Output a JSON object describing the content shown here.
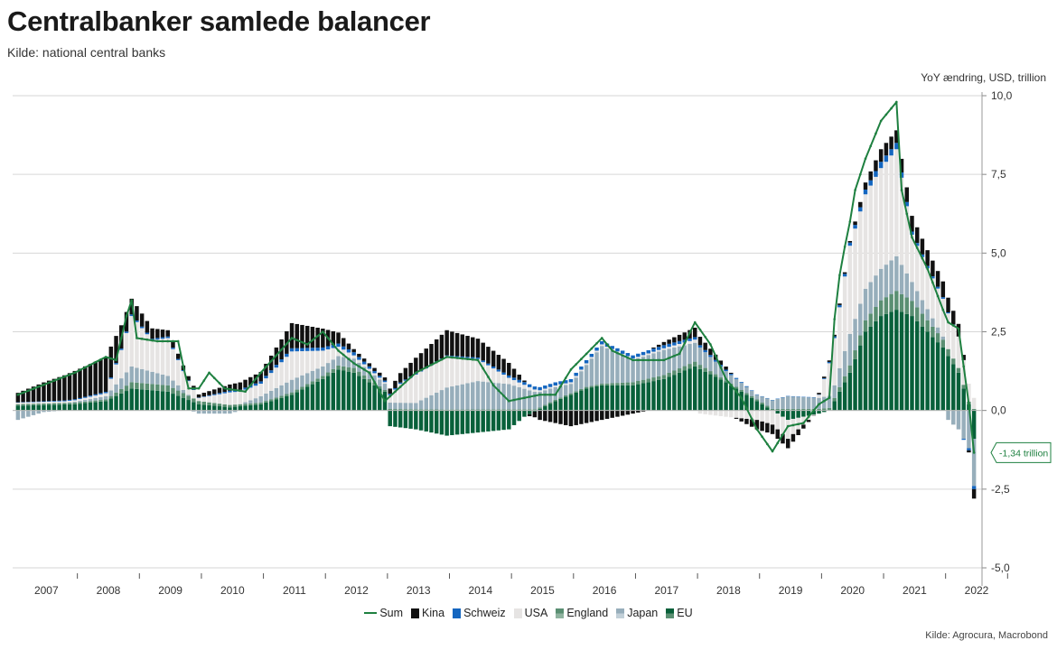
{
  "title": "Centralbanker samlede balancer",
  "subtitle": "Kilde: national central banks",
  "source": "Kilde: Agrocura, Macrobond",
  "chart_data": {
    "type": "bar",
    "stacked": true,
    "title": "Centralbanker samlede balancer",
    "ylabel": "YoY ændring, USD, trillion",
    "ylim": [
      -5,
      10
    ],
    "y_ticks": [
      "10,0",
      "7,5",
      "5,0",
      "2,5",
      "0,0",
      "-2,5",
      "-5,0"
    ],
    "y_tick_values": [
      10,
      7.5,
      5,
      2.5,
      0,
      -2.5,
      -5
    ],
    "y_axis_side": "right",
    "grid": true,
    "x_tick_labels": [
      "2007",
      "2008",
      "2009",
      "2010",
      "2011",
      "2012",
      "2013",
      "2014",
      "2015",
      "2016",
      "2017",
      "2018",
      "2019",
      "2020",
      "2021",
      "2022"
    ],
    "frequency": "monthly",
    "start": "2007-01",
    "end": "2022-06",
    "legend_position": "bottom",
    "end_annotation": "-1,34 trillion",
    "series": [
      {
        "name": "Sum",
        "kind": "line",
        "color": "#1e8040"
      },
      {
        "name": "Kina",
        "kind": "bar",
        "color": "#111111"
      },
      {
        "name": "Schweiz",
        "kind": "bar",
        "color": "#1466c0"
      },
      {
        "name": "USA",
        "kind": "bar",
        "color": "#e6e4e3"
      },
      {
        "name": "England",
        "kind": "bar",
        "color": "#5a8f72"
      },
      {
        "name": "Japan",
        "kind": "bar",
        "color": "#97aebb"
      },
      {
        "name": "EU",
        "kind": "bar",
        "color": "#08603a"
      }
    ],
    "anchors": {
      "sum": [
        [
          "2007-01",
          0.5
        ],
        [
          "2007-12",
          1.2
        ],
        [
          "2008-06",
          1.7
        ],
        [
          "2008-08",
          1.6
        ],
        [
          "2008-10",
          3.0
        ],
        [
          "2008-11",
          3.5
        ],
        [
          "2008-12",
          2.3
        ],
        [
          "2009-04",
          2.2
        ],
        [
          "2009-08",
          2.2
        ],
        [
          "2009-09",
          1.4
        ],
        [
          "2009-10",
          0.7
        ],
        [
          "2009-12",
          0.7
        ],
        [
          "2010-02",
          1.2
        ],
        [
          "2010-05",
          0.7
        ],
        [
          "2010-09",
          0.6
        ],
        [
          "2010-12",
          1.2
        ],
        [
          "2011-06",
          2.3
        ],
        [
          "2011-09",
          2.1
        ],
        [
          "2011-12",
          2.5
        ],
        [
          "2012-03",
          1.9
        ],
        [
          "2012-06",
          1.5
        ],
        [
          "2012-09",
          1.2
        ],
        [
          "2012-12",
          0.3
        ],
        [
          "2013-06",
          1.2
        ],
        [
          "2013-12",
          1.7
        ],
        [
          "2014-06",
          1.6
        ],
        [
          "2014-09",
          0.8
        ],
        [
          "2014-12",
          0.3
        ],
        [
          "2015-06",
          0.5
        ],
        [
          "2015-09",
          0.5
        ],
        [
          "2015-12",
          1.3
        ],
        [
          "2016-06",
          2.3
        ],
        [
          "2016-08",
          1.9
        ],
        [
          "2016-12",
          1.6
        ],
        [
          "2017-06",
          1.6
        ],
        [
          "2017-09",
          1.8
        ],
        [
          "2017-12",
          2.8
        ],
        [
          "2018-03",
          2.1
        ],
        [
          "2018-06",
          1.0
        ],
        [
          "2018-09",
          0.4
        ],
        [
          "2018-12",
          -0.6
        ],
        [
          "2019-03",
          -1.3
        ],
        [
          "2019-06",
          -0.5
        ],
        [
          "2019-09",
          -0.4
        ],
        [
          "2019-12",
          0.2
        ],
        [
          "2020-01",
          0.3
        ],
        [
          "2020-02",
          0.4
        ],
        [
          "2020-03",
          2.9
        ],
        [
          "2020-04",
          4.3
        ],
        [
          "2020-05",
          5.2
        ],
        [
          "2020-06",
          6.0
        ],
        [
          "2020-07",
          7.0
        ],
        [
          "2020-09",
          8.0
        ],
        [
          "2020-12",
          9.2
        ],
        [
          "2021-03",
          9.8
        ],
        [
          "2021-04",
          7.0
        ],
        [
          "2021-06",
          5.5
        ],
        [
          "2021-09",
          4.5
        ],
        [
          "2021-12",
          3.2
        ],
        [
          "2022-01",
          2.8
        ],
        [
          "2022-03",
          2.6
        ],
        [
          "2022-05",
          0.2
        ],
        [
          "2022-06",
          -1.34
        ]
      ],
      "eu": [
        [
          "2007-01",
          0.15
        ],
        [
          "2007-12",
          0.2
        ],
        [
          "2008-06",
          0.3
        ],
        [
          "2008-11",
          0.7
        ],
        [
          "2009-06",
          0.6
        ],
        [
          "2009-12",
          0.2
        ],
        [
          "2010-06",
          0.1
        ],
        [
          "2010-12",
          0.2
        ],
        [
          "2011-06",
          0.5
        ],
        [
          "2011-12",
          1.0
        ],
        [
          "2012-03",
          1.3
        ],
        [
          "2012-06",
          1.2
        ],
        [
          "2012-12",
          0.6
        ],
        [
          "2013-01",
          -0.5
        ],
        [
          "2013-06",
          -0.6
        ],
        [
          "2013-12",
          -0.8
        ],
        [
          "2014-06",
          -0.7
        ],
        [
          "2014-12",
          -0.6
        ],
        [
          "2015-03",
          -0.2
        ],
        [
          "2015-06",
          0.05
        ],
        [
          "2015-09",
          0.3
        ],
        [
          "2016-03",
          0.7
        ],
        [
          "2016-06",
          0.8
        ],
        [
          "2016-12",
          0.8
        ],
        [
          "2017-06",
          1.0
        ],
        [
          "2017-12",
          1.4
        ],
        [
          "2018-06",
          0.9
        ],
        [
          "2018-12",
          0.3
        ],
        [
          "2019-06",
          -0.3
        ],
        [
          "2019-12",
          -0.1
        ],
        [
          "2020-02",
          0.0
        ],
        [
          "2020-03",
          0.3
        ],
        [
          "2020-06",
          1.2
        ],
        [
          "2020-09",
          2.5
        ],
        [
          "2020-12",
          3.0
        ],
        [
          "2021-03",
          3.2
        ],
        [
          "2021-06",
          3.0
        ],
        [
          "2021-12",
          2.0
        ],
        [
          "2022-03",
          1.2
        ],
        [
          "2022-05",
          0.2
        ],
        [
          "2022-06",
          -0.9
        ]
      ],
      "eng": [
        [
          "2007-01",
          0.05
        ],
        [
          "2008-06",
          0.05
        ],
        [
          "2008-11",
          0.2
        ],
        [
          "2009-06",
          0.2
        ],
        [
          "2009-12",
          0.1
        ],
        [
          "2010-12",
          0.05
        ],
        [
          "2011-12",
          0.1
        ],
        [
          "2012-06",
          0.15
        ],
        [
          "2012-12",
          0.05
        ],
        [
          "2013-12",
          0.03
        ],
        [
          "2016-06",
          0.05
        ],
        [
          "2016-12",
          0.1
        ],
        [
          "2017-12",
          0.15
        ],
        [
          "2018-06",
          0.05
        ],
        [
          "2019-12",
          0.05
        ],
        [
          "2020-03",
          0.1
        ],
        [
          "2020-12",
          0.5
        ],
        [
          "2021-03",
          0.6
        ],
        [
          "2021-12",
          0.25
        ],
        [
          "2022-06",
          0.05
        ]
      ],
      "jp": [
        [
          "2007-01",
          -0.3
        ],
        [
          "2007-06",
          -0.05
        ],
        [
          "2008-06",
          0.1
        ],
        [
          "2008-11",
          0.5
        ],
        [
          "2009-06",
          0.3
        ],
        [
          "2009-12",
          -0.1
        ],
        [
          "2010-06",
          -0.1
        ],
        [
          "2010-12",
          0.2
        ],
        [
          "2011-06",
          0.4
        ],
        [
          "2011-12",
          0.3
        ],
        [
          "2012-06",
          0.3
        ],
        [
          "2012-12",
          0.2
        ],
        [
          "2013-06",
          0.2
        ],
        [
          "2013-12",
          0.7
        ],
        [
          "2014-06",
          0.9
        ],
        [
          "2014-12",
          0.8
        ],
        [
          "2015-06",
          0.5
        ],
        [
          "2015-12",
          0.3
        ],
        [
          "2016-03",
          0.7
        ],
        [
          "2016-06",
          1.2
        ],
        [
          "2016-12",
          0.7
        ],
        [
          "2017-06",
          0.8
        ],
        [
          "2017-12",
          0.6
        ],
        [
          "2018-06",
          0.3
        ],
        [
          "2018-12",
          0.15
        ],
        [
          "2019-06",
          0.4
        ],
        [
          "2019-12",
          0.35
        ],
        [
          "2020-03",
          0.4
        ],
        [
          "2020-06",
          1.0
        ],
        [
          "2020-12",
          1.0
        ],
        [
          "2021-03",
          1.1
        ],
        [
          "2021-06",
          0.6
        ],
        [
          "2021-12",
          0.1
        ],
        [
          "2022-01",
          -0.3
        ],
        [
          "2022-03",
          -0.6
        ],
        [
          "2022-06",
          -1.5
        ]
      ],
      "usa": [
        [
          "2007-01",
          0.05
        ],
        [
          "2007-12",
          0.05
        ],
        [
          "2008-06",
          0.1
        ],
        [
          "2008-09",
          0.9
        ],
        [
          "2008-11",
          1.6
        ],
        [
          "2009-03",
          1.0
        ],
        [
          "2009-06",
          1.2
        ],
        [
          "2009-09",
          0.6
        ],
        [
          "2009-12",
          0.1
        ],
        [
          "2010-06",
          0.4
        ],
        [
          "2010-12",
          0.4
        ],
        [
          "2011-06",
          0.9
        ],
        [
          "2011-12",
          0.5
        ],
        [
          "2012-06",
          0.1
        ],
        [
          "2012-12",
          0.05
        ],
        [
          "2013-03",
          0.6
        ],
        [
          "2013-06",
          0.9
        ],
        [
          "2013-12",
          1.0
        ],
        [
          "2014-06",
          0.7
        ],
        [
          "2014-12",
          0.2
        ],
        [
          "2015-06",
          0.05
        ],
        [
          "2016-06",
          0.05
        ],
        [
          "2017-06",
          0.05
        ],
        [
          "2017-12",
          0.1
        ],
        [
          "2018-01",
          -0.1
        ],
        [
          "2018-06",
          -0.2
        ],
        [
          "2018-12",
          -0.3
        ],
        [
          "2019-06",
          -0.6
        ],
        [
          "2019-12",
          0.1
        ],
        [
          "2020-03",
          1.5
        ],
        [
          "2020-06",
          2.8
        ],
        [
          "2020-09",
          3.0
        ],
        [
          "2020-12",
          3.2
        ],
        [
          "2021-03",
          3.4
        ],
        [
          "2021-06",
          1.5
        ],
        [
          "2021-09",
          1.3
        ],
        [
          "2021-12",
          1.2
        ],
        [
          "2022-03",
          1.0
        ],
        [
          "2022-06",
          0.35
        ]
      ],
      "ch": [
        [
          "2007-01",
          0.01
        ],
        [
          "2008-11",
          0.05
        ],
        [
          "2009-06",
          0.05
        ],
        [
          "2009-12",
          0.01
        ],
        [
          "2010-06",
          0.05
        ],
        [
          "2011-06",
          0.1
        ],
        [
          "2011-12",
          0.1
        ],
        [
          "2012-06",
          0.1
        ],
        [
          "2012-12",
          0.05
        ],
        [
          "2013-12",
          0.02
        ],
        [
          "2015-06",
          0.1
        ],
        [
          "2016-06",
          0.1
        ],
        [
          "2017-06",
          0.1
        ],
        [
          "2017-12",
          0.08
        ],
        [
          "2018-12",
          0.01
        ],
        [
          "2019-12",
          0.01
        ],
        [
          "2020-06",
          0.1
        ],
        [
          "2020-12",
          0.2
        ],
        [
          "2021-03",
          0.2
        ],
        [
          "2021-06",
          0.1
        ],
        [
          "2021-12",
          0.05
        ],
        [
          "2022-03",
          0.0
        ],
        [
          "2022-06",
          -0.1
        ]
      ],
      "cn": [
        [
          "2007-01",
          0.3
        ],
        [
          "2007-06",
          0.6
        ],
        [
          "2007-12",
          0.9
        ],
        [
          "2008-06",
          1.1
        ],
        [
          "2008-11",
          0.5
        ],
        [
          "2009-06",
          0.2
        ],
        [
          "2009-12",
          0.1
        ],
        [
          "2010-06",
          0.2
        ],
        [
          "2010-12",
          0.3
        ],
        [
          "2011-06",
          0.8
        ],
        [
          "2011-12",
          0.6
        ],
        [
          "2012-06",
          0.1
        ],
        [
          "2012-12",
          0.1
        ],
        [
          "2013-06",
          0.5
        ],
        [
          "2013-12",
          0.8
        ],
        [
          "2014-06",
          0.6
        ],
        [
          "2014-12",
          0.4
        ],
        [
          "2015-06",
          -0.3
        ],
        [
          "2015-12",
          -0.5
        ],
        [
          "2016-06",
          -0.3
        ],
        [
          "2016-12",
          -0.1
        ],
        [
          "2017-06",
          0.1
        ],
        [
          "2017-12",
          0.3
        ],
        [
          "2018-06",
          0.1
        ],
        [
          "2018-12",
          -0.3
        ],
        [
          "2019-06",
          -0.3
        ],
        [
          "2019-12",
          0.05
        ],
        [
          "2020-06",
          0.05
        ],
        [
          "2020-12",
          0.4
        ],
        [
          "2021-03",
          0.4
        ],
        [
          "2021-06",
          0.5
        ],
        [
          "2021-12",
          0.5
        ],
        [
          "2022-03",
          0.4
        ],
        [
          "2022-06",
          -0.3
        ]
      ]
    }
  },
  "legend": {
    "sum": "Sum",
    "kina": "Kina",
    "schweiz": "Schweiz",
    "usa": "USA",
    "england": "England",
    "japan": "Japan",
    "eu": "EU"
  }
}
